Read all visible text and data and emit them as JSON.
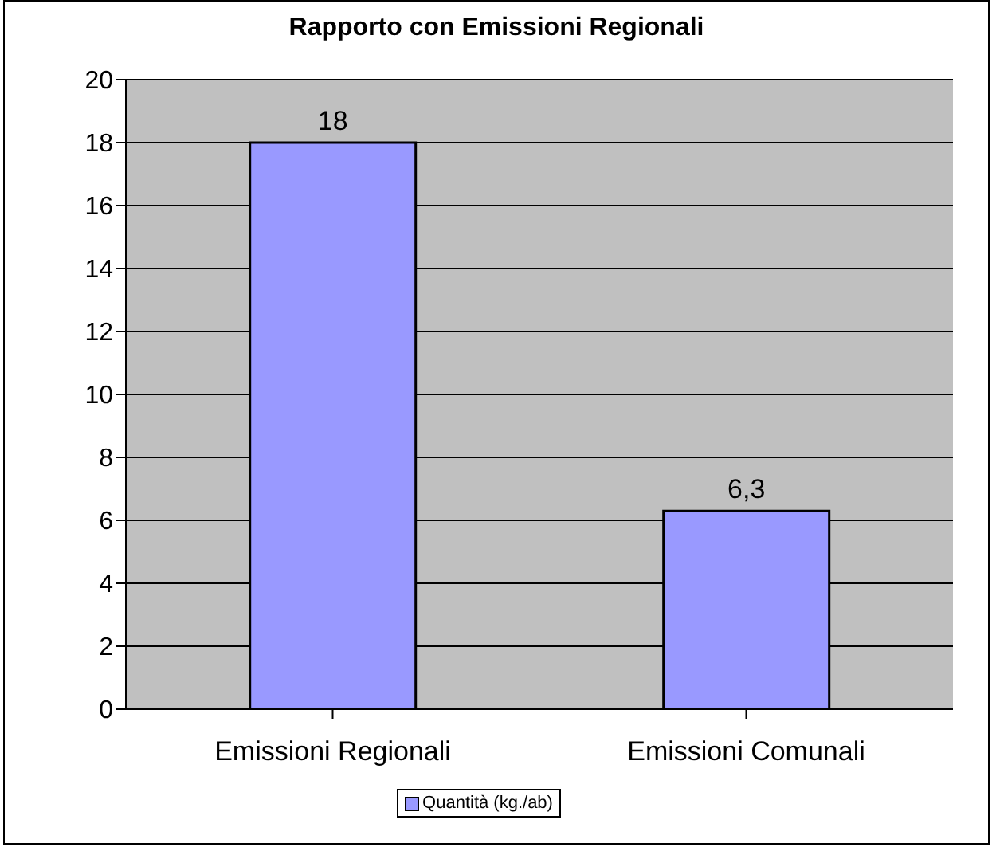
{
  "chart_data": {
    "type": "bar",
    "title": "Rapporto con Emissioni Regionali",
    "categories": [
      "Emissioni Regionali",
      "Emissioni Comunali"
    ],
    "series": [
      {
        "name": "Quantità (kg./ab)",
        "color": "#9999ff",
        "values": [
          18,
          6.3
        ]
      }
    ],
    "value_labels": [
      "18",
      "6,3"
    ],
    "ylim": [
      0,
      20
    ],
    "yticks": [
      0,
      2,
      4,
      6,
      8,
      10,
      12,
      14,
      16,
      18,
      20
    ],
    "grid": "y",
    "legend": "bottom"
  }
}
